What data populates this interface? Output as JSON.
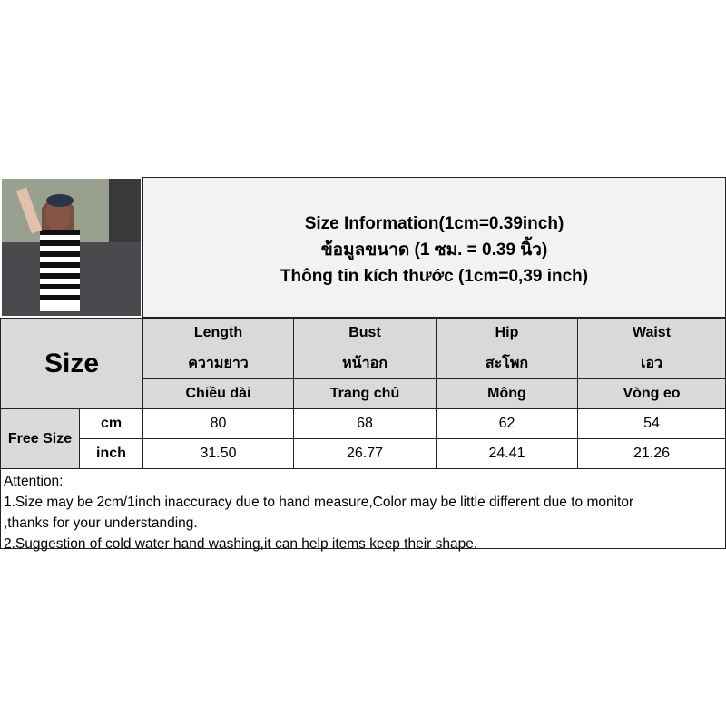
{
  "header": {
    "lines": [
      "Size Information(1cm=0.39inch)",
      "ข้อมูลขนาด (1 ซม. = 0.39 นิ้ว)",
      "Thông tin kích thước (1cm=0,39 inch)"
    ]
  },
  "table": {
    "size_label": "Size",
    "columns": [
      {
        "en": "Length",
        "th": "ความยาว",
        "vi": "Chiều dài"
      },
      {
        "en": "Bust",
        "th": "หน้าอก",
        "vi": "Trang chủ"
      },
      {
        "en": "Hip",
        "th": "สะโพก",
        "vi": "Mông"
      },
      {
        "en": "Waist",
        "th": "เอว",
        "vi": "Vòng eo"
      }
    ],
    "row_label": "Free Size",
    "rows": [
      {
        "unit": "cm",
        "values": [
          "80",
          "68",
          "62",
          "54"
        ]
      },
      {
        "unit": "inch",
        "values": [
          "31.50",
          "26.77",
          "24.41",
          "21.26"
        ]
      }
    ]
  },
  "attention": {
    "lines": [
      "Attention:",
      "1.Size may be 2cm/1inch inaccuracy due to hand measure,Color may be little different due to monitor",
      ",thanks for your understanding.",
      "2.Suggestion of cold water hand washing,it can help items keep their shape."
    ]
  },
  "colors": {
    "header_bg": "#f2f2f2",
    "cell_bg": "#d9d9d9",
    "border": "#222222"
  }
}
